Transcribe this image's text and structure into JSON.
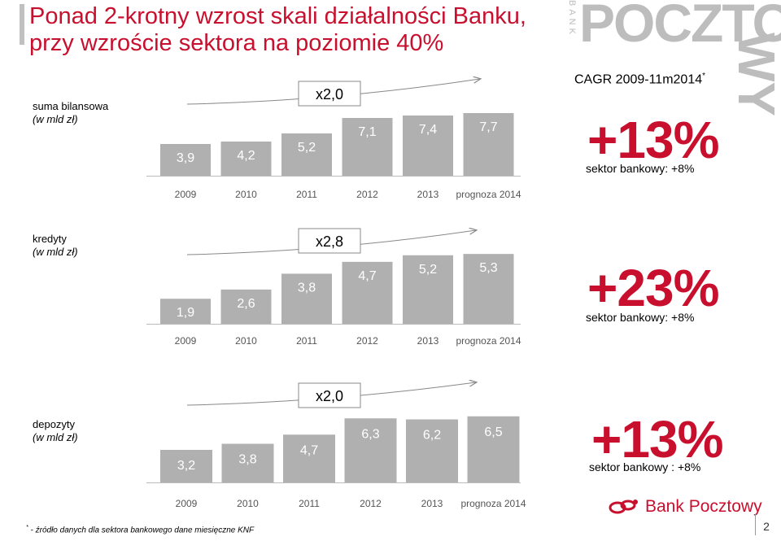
{
  "title_line1": "Ponad 2-krotny wzrost skali działalności Banku,",
  "title_line2": "przy wzroście sektora na poziomie 40%",
  "brand_watermark_word": "POCZTO",
  "brand_watermark_vertical": "WY",
  "brand_bank_vertical": "BANK",
  "cagr_header": "CAGR 2009-11m2014",
  "cagr_header_mark": "*",
  "colors": {
    "accent": "#c8102e",
    "bar": "#b0b0b0",
    "arrow": "#888888",
    "watermark": "#bdbdbd"
  },
  "chart_data": [
    {
      "type": "bar",
      "label": "suma bilansowa",
      "unit": "(w mld zł)",
      "categories": [
        "2009",
        "2010",
        "2011",
        "2012",
        "2013",
        "prognoza 2014"
      ],
      "values": [
        3.9,
        4.2,
        5.2,
        7.1,
        7.4,
        7.7
      ],
      "value_labels": [
        "3,9",
        "4,2",
        "5,2",
        "7,1",
        "7,4",
        "7,7"
      ],
      "growth_label": "x2,0",
      "cagr": "+13%",
      "sector": "sektor bankowy: +8%"
    },
    {
      "type": "bar",
      "label": "kredyty",
      "unit": "(w mld zł)",
      "categories": [
        "2009",
        "2010",
        "2011",
        "2012",
        "2013",
        "prognoza 2014"
      ],
      "values": [
        1.9,
        2.6,
        3.8,
        4.7,
        5.2,
        5.3
      ],
      "value_labels": [
        "1,9",
        "2,6",
        "3,8",
        "4,7",
        "5,2",
        "5,3"
      ],
      "growth_label": "x2,8",
      "cagr": "+23%",
      "sector": "sektor bankowy: +8%"
    },
    {
      "type": "bar",
      "label": "depozyty",
      "unit": "(w mld zł)",
      "categories": [
        "2009",
        "2010",
        "2011",
        "2012",
        "2013",
        "prognoza 2014"
      ],
      "values": [
        3.2,
        3.8,
        4.7,
        6.3,
        6.2,
        6.5
      ],
      "value_labels": [
        "3,2",
        "3,8",
        "4,7",
        "6,3",
        "6,2",
        "6,5"
      ],
      "growth_label": "x2,0",
      "cagr": "+13%",
      "sector": "sektor bankowy : +8%"
    }
  ],
  "footnote_mark": "*",
  "footnote": " - źródło danych dla sektora bankowego dane miesięczne KNF",
  "logo_text": "Bank Pocztowy",
  "page_number": "2"
}
